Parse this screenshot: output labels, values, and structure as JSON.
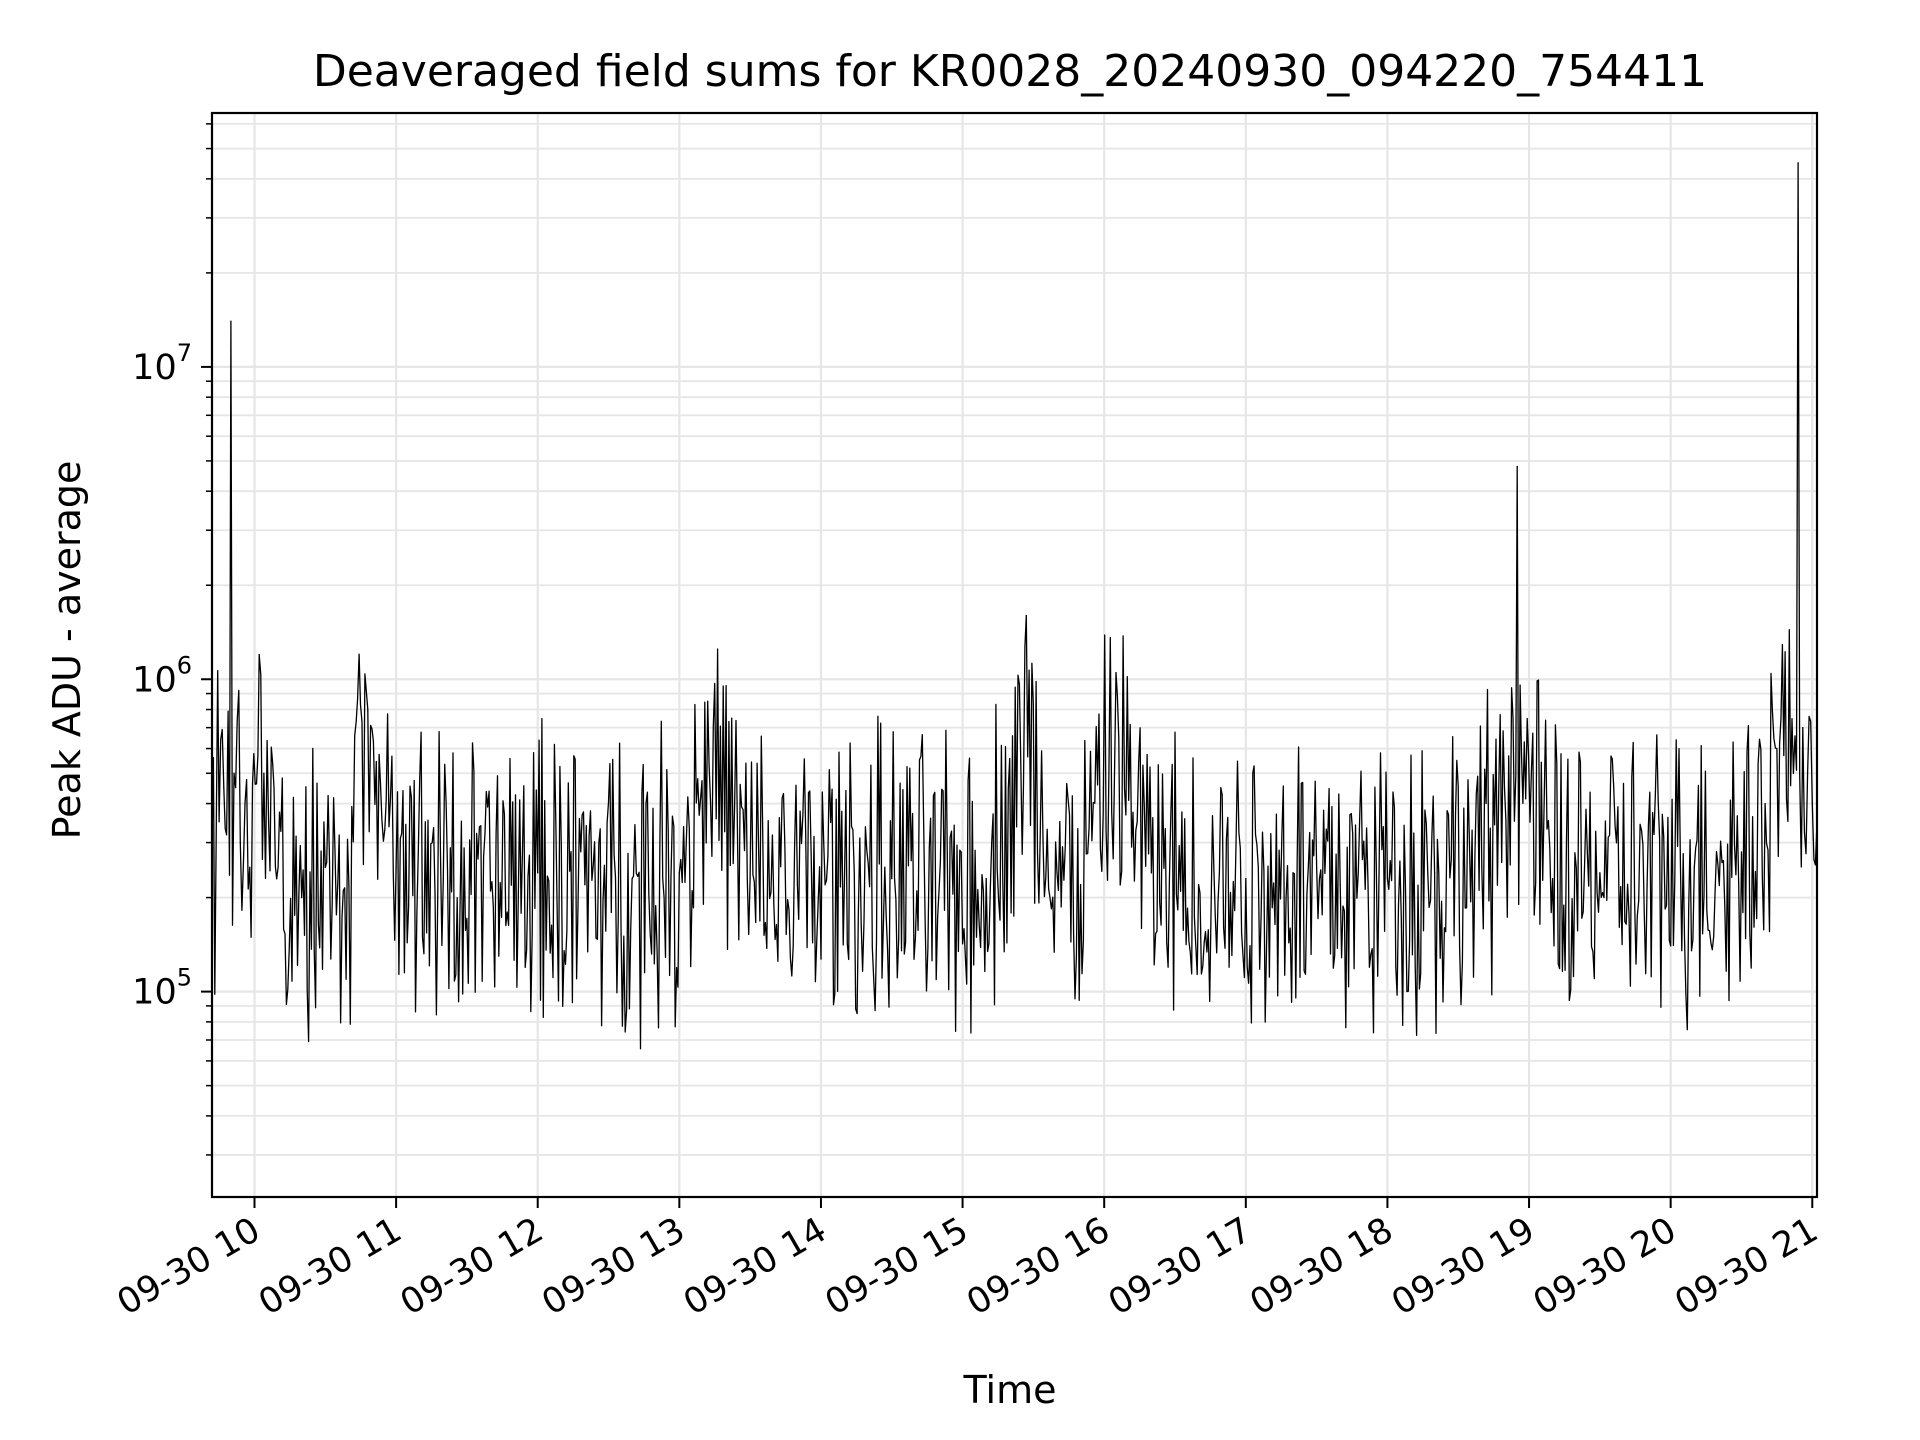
{
  "chart_data": {
    "type": "line",
    "title": "Deaveraged field sums for KR0028_20240930_094220_754411",
    "xlabel": "Time",
    "ylabel": "Peak ADU - average",
    "x_scale": "time",
    "y_scale": "log",
    "xlim": [
      "2024-09-30 09:42",
      "2024-09-30 21:02"
    ],
    "ylim": [
      22000,
      65000000
    ],
    "grid": true,
    "legend": "none",
    "line_color": "#000000",
    "grid_color": "#e6e6e6",
    "x_tick_labels": [
      "09-30 10",
      "09-30 11",
      "09-30 12",
      "09-30 13",
      "09-30 14",
      "09-30 15",
      "09-30 16",
      "09-30 17",
      "09-30 18",
      "09-30 19",
      "09-30 20",
      "09-30 21"
    ],
    "x_tick_values": [
      "2024-09-30 10:00",
      "2024-09-30 11:00",
      "2024-09-30 12:00",
      "2024-09-30 13:00",
      "2024-09-30 14:00",
      "2024-09-30 15:00",
      "2024-09-30 16:00",
      "2024-09-30 17:00",
      "2024-09-30 18:00",
      "2024-09-30 19:00",
      "2024-09-30 20:00",
      "2024-09-30 21:00"
    ],
    "y_ticks": [
      {
        "value": 100000,
        "base": "10",
        "exp": "5"
      },
      {
        "value": 1000000,
        "base": "10",
        "exp": "6"
      },
      {
        "value": 10000000,
        "base": "10",
        "exp": "7"
      }
    ],
    "series": [
      {
        "x": [
          "2024-09-30 09:42",
          "2024-09-30 09:45",
          "2024-09-30 09:47",
          "2024-09-30 09:50",
          "2024-09-30 09:52",
          "2024-09-30 09:54",
          "2024-09-30 09:56",
          "2024-09-30 09:58",
          "2024-09-30 10:02",
          "2024-09-30 10:04",
          "2024-09-30 10:06",
          "2024-09-30 10:10",
          "2024-09-30 10:20",
          "2024-09-30 10:30",
          "2024-09-30 10:40",
          "2024-09-30 10:48",
          "2024-09-30 11:00",
          "2024-09-30 11:20",
          "2024-09-30 11:40",
          "2024-09-30 12:00",
          "2024-09-30 12:20",
          "2024-09-30 12:40",
          "2024-09-30 13:00",
          "2024-09-30 13:12",
          "2024-09-30 13:30",
          "2024-09-30 13:50",
          "2024-09-30 14:10",
          "2024-09-30 14:30",
          "2024-09-30 14:50",
          "2024-09-30 15:10",
          "2024-09-30 15:27",
          "2024-09-30 15:40",
          "2024-09-30 15:50",
          "2024-09-30 16:05",
          "2024-09-30 16:20",
          "2024-09-30 16:40",
          "2024-09-30 17:00",
          "2024-09-30 17:20",
          "2024-09-30 17:40",
          "2024-09-30 18:00",
          "2024-09-30 18:20",
          "2024-09-30 18:40",
          "2024-09-30 18:55",
          "2024-09-30 19:10",
          "2024-09-30 19:30",
          "2024-09-30 19:50",
          "2024-09-30 20:10",
          "2024-09-30 20:30",
          "2024-09-30 20:40",
          "2024-09-30 20:45",
          "2024-09-30 20:52",
          "2024-09-30 20:54",
          "2024-09-30 20:56",
          "2024-09-30 20:58",
          "2024-09-30 21:00",
          "2024-09-30 21:02"
        ],
        "y": [
          300000,
          350000,
          450000,
          14000000,
          450000,
          300000,
          400000,
          250000,
          1200000,
          500000,
          350000,
          250000,
          200000,
          250000,
          220000,
          800000,
          250000,
          230000,
          210000,
          240000,
          220000,
          230000,
          240000,
          850000,
          230000,
          220000,
          240000,
          230000,
          210000,
          230000,
          1600000,
          240000,
          220000,
          1050000,
          240000,
          220000,
          230000,
          240000,
          220000,
          230000,
          240000,
          250000,
          4800000,
          230000,
          240000,
          220000,
          250000,
          280000,
          400000,
          600000,
          500000,
          45000000,
          700000,
          500000,
          400000,
          350000
        ]
      }
    ]
  }
}
